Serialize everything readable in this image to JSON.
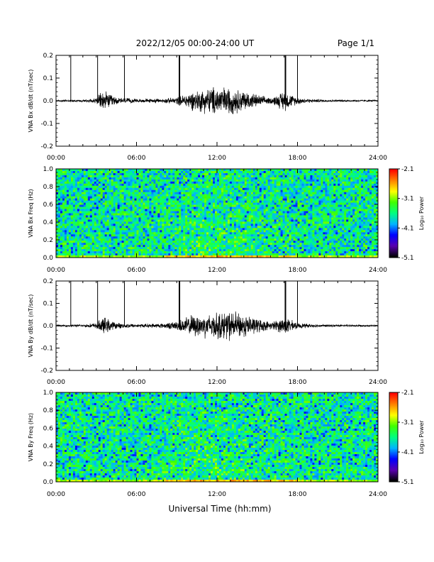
{
  "header": {
    "title": "2022/12/05  00:00-24:00 UT",
    "page": "Page 1/1"
  },
  "footer": {
    "xlabel": "Universal Time (hh:mm)"
  },
  "colors": {
    "trace": "#000000",
    "colormap": [
      "#000000",
      "#5a00b0",
      "#0000ff",
      "#00b4ff",
      "#00ff80",
      "#40ff00",
      "#ffff00",
      "#ff8000",
      "#ff0000"
    ]
  },
  "chart_data": [
    {
      "id": "bx-trace",
      "type": "line",
      "ylabel": "VNA Bx dB/dt (nT/sec)",
      "ylim": [
        -0.2,
        0.2
      ],
      "yticks": [
        "0.2",
        "0.1",
        "0.0",
        "-0.1",
        "-0.2"
      ],
      "xlim": [
        0,
        24
      ],
      "xticks": [
        "00:00",
        "06:00",
        "12:00",
        "18:00",
        "24:00"
      ],
      "spike_hours": [
        1.1,
        3.1,
        5.1,
        9.2,
        17.1,
        18.0
      ],
      "envelope": {
        "hours": [
          0,
          2,
          3,
          3.5,
          4.5,
          6,
          8,
          9,
          10,
          11,
          12,
          13,
          14,
          15,
          16,
          16.5,
          17,
          17.5,
          18,
          19,
          20,
          22,
          24
        ],
        "amplitude": [
          0.003,
          0.004,
          0.01,
          0.035,
          0.012,
          0.006,
          0.007,
          0.012,
          0.03,
          0.04,
          0.05,
          0.045,
          0.035,
          0.02,
          0.01,
          0.02,
          0.035,
          0.02,
          0.012,
          0.006,
          0.004,
          0.003,
          0.003
        ]
      }
    },
    {
      "id": "bx-spectrogram",
      "type": "heatmap",
      "ylabel": "VNA Bx Freq (Hz)",
      "ylim": [
        0.0,
        1.0
      ],
      "yticks": [
        "1.0",
        "0.8",
        "0.6",
        "0.4",
        "0.2",
        "0.0"
      ],
      "xlim": [
        0,
        24
      ],
      "xticks": [
        "00:00",
        "06:00",
        "12:00",
        "18:00",
        "24:00"
      ],
      "colorbar_label": "Log₁₀ Power",
      "colorbar_ticks": [
        "-2.1",
        "-3.1",
        "-4.1",
        "-5.1"
      ],
      "zlim": [
        -5.1,
        -2.1
      ]
    },
    {
      "id": "by-trace",
      "type": "line",
      "ylabel": "VNA By dB/dt (nT/sec)",
      "ylim": [
        -0.2,
        0.2
      ],
      "yticks": [
        "0.2",
        "0.1",
        "0.0",
        "-0.1",
        "-0.2"
      ],
      "xlim": [
        0,
        24
      ],
      "xticks": [
        "00:00",
        "06:00",
        "12:00",
        "18:00",
        "24:00"
      ],
      "spike_hours": [
        1.1,
        3.1,
        5.1,
        9.2,
        17.1,
        18.0
      ],
      "envelope": {
        "hours": [
          0,
          2,
          3,
          3.5,
          4.5,
          6,
          8,
          9,
          10,
          11,
          12,
          13,
          14,
          15,
          16,
          16.5,
          17,
          17.5,
          18,
          19,
          20,
          22,
          24
        ],
        "amplitude": [
          0.003,
          0.004,
          0.01,
          0.03,
          0.01,
          0.006,
          0.008,
          0.015,
          0.035,
          0.04,
          0.045,
          0.05,
          0.04,
          0.025,
          0.012,
          0.02,
          0.03,
          0.02,
          0.01,
          0.006,
          0.004,
          0.003,
          0.003
        ]
      }
    },
    {
      "id": "by-spectrogram",
      "type": "heatmap",
      "ylabel": "VNA By Freq (Hz)",
      "ylim": [
        0.0,
        1.0
      ],
      "yticks": [
        "1.0",
        "0.8",
        "0.6",
        "0.4",
        "0.2",
        "0.0"
      ],
      "xlim": [
        0,
        24
      ],
      "xticks": [
        "00:00",
        "06:00",
        "12:00",
        "18:00",
        "24:00"
      ],
      "colorbar_label": "Log₁₀ Power",
      "colorbar_ticks": [
        "-2.1",
        "-3.1",
        "-4.1",
        "-5.1"
      ],
      "zlim": [
        -5.1,
        -2.1
      ]
    }
  ]
}
